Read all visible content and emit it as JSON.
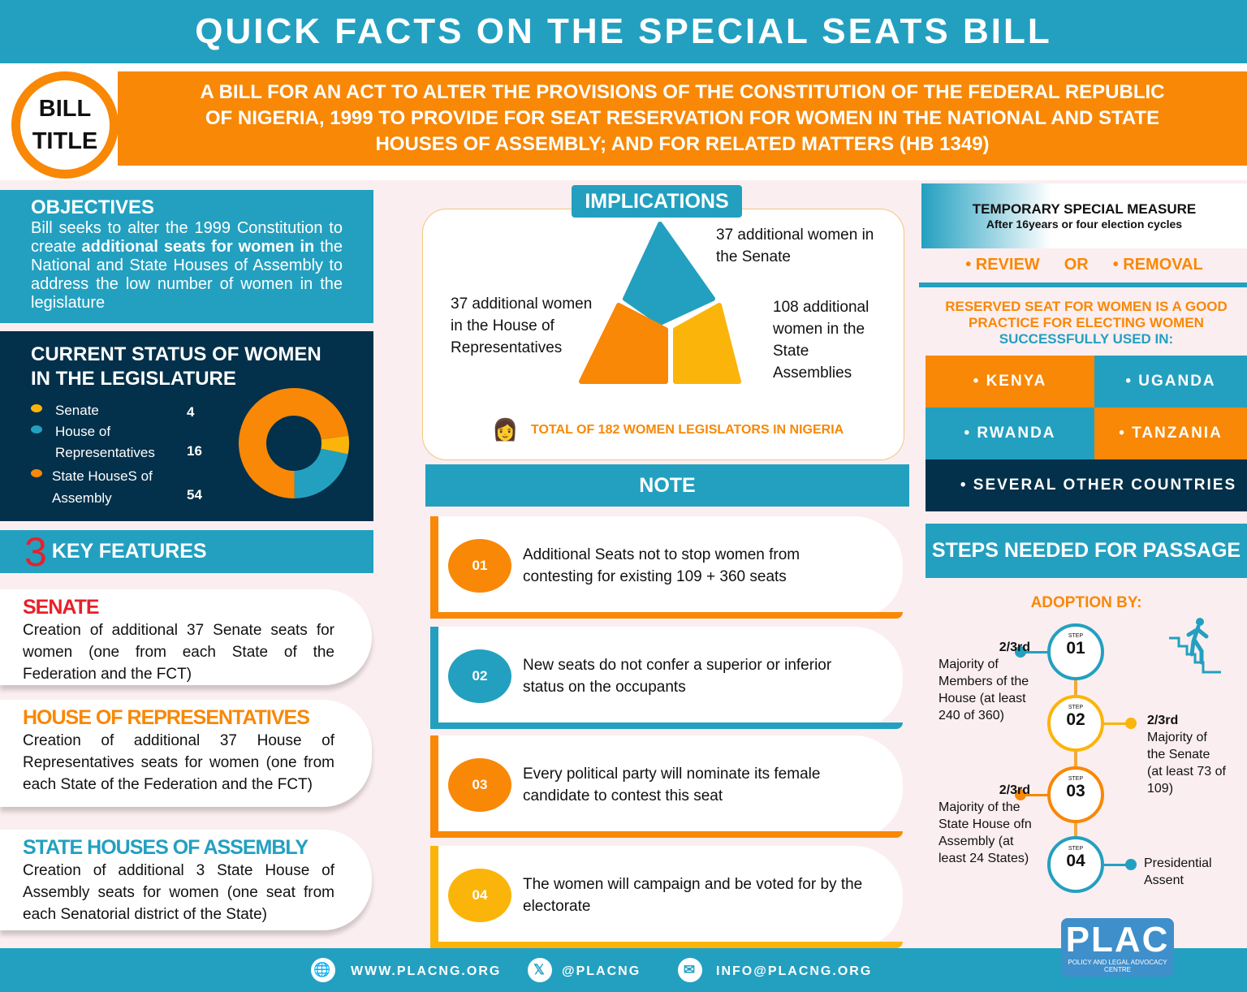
{
  "header": {
    "title": "QUICK FACTS ON THE SPECIAL SEATS BILL"
  },
  "bill": {
    "label_line1": "BILL",
    "label_line2": "TITLE",
    "text": "A BILL FOR AN ACT TO ALTER THE PROVISIONS OF THE CONSTITUTION OF THE FEDERAL REPUBLIC OF NIGERIA, 1999 TO PROVIDE FOR SEAT RESERVATION FOR WOMEN IN THE NATIONAL AND STATE HOUSES OF ASSEMBLY; AND FOR RELATED MATTERS (HB 1349)"
  },
  "objectives": {
    "title": "OBJECTIVES",
    "text_pre": "Bill seeks to alter the 1999 Constitution to create ",
    "text_bold": "additional seats for women in",
    "text_post": " the National and State Houses of Assembly to address the low number of women in the legislature"
  },
  "status": {
    "title": "CURRENT STATUS OF WOMEN IN THE LEGISLATURE",
    "items": [
      {
        "label1": "Senate",
        "label2": "",
        "value": 4,
        "color": "#fbb40a"
      },
      {
        "label1": "House of",
        "label2": "Representatives",
        "value": 16,
        "color": "#23a0c0"
      },
      {
        "label1": "State HouseS of",
        "label2": "Assembly",
        "value": 54,
        "color": "#f88806"
      }
    ]
  },
  "key_features": {
    "count": "3",
    "title": "KEY FEATURES",
    "items": [
      {
        "title": "SENATE",
        "color": "#e8202a",
        "text": "Creation of additional 37 Senate seats for women (one from each State of the Federation and the FCT)"
      },
      {
        "title": "HOUSE OF REPRESENTATIVES",
        "color": "#f88806",
        "text": "Creation of additional 37 House of Representatives seats for women (one from each State of the Federation and the FCT)"
      },
      {
        "title": "STATE HOUSES OF ASSEMBLY",
        "color": "#23a0c0",
        "text": "Creation of additional 3 State House of Assembly seats for women (one seat from each Senatorial district of the State)"
      }
    ]
  },
  "implications": {
    "title": "IMPLICATIONS",
    "senate": "37 additional women in the Senate",
    "house": "37 additional women in the House of Representatives",
    "state": "108 additional women in the State Assemblies",
    "total": "TOTAL OF 182 WOMEN LEGISLATORS IN NIGERIA"
  },
  "note": {
    "title": "NOTE",
    "items": [
      {
        "num": "01",
        "text": "Additional Seats not to stop women from contesting for existing 109 + 360 seats",
        "color": "#f88806"
      },
      {
        "num": "02",
        "text": "New seats do not confer a superior or inferior status on the occupants",
        "color": "#23a0c0"
      },
      {
        "num": "03",
        "text": "Every political party will nominate its female candidate to contest this seat",
        "color": "#f88806"
      },
      {
        "num": "04",
        "text": "The women will campaign and be voted for by the electorate",
        "color": "#fbb40a"
      }
    ]
  },
  "tsm": {
    "title": "TEMPORARY SPECIAL MEASURE",
    "subtitle": "After 16years or four election cycles",
    "review": "• REVIEW",
    "or": "OR",
    "removal": "• REMOVAL"
  },
  "reserved": {
    "line1": "RESERVED SEAT FOR WOMEN IS A GOOD PRACTICE FOR ELECTING WOMEN",
    "line2": "SUCCESSFULLY USED IN:",
    "countries": [
      "• KENYA",
      "• UGANDA",
      "• RWANDA",
      "• TANZANIA",
      "• SEVERAL OTHER COUNTRIES"
    ]
  },
  "steps": {
    "title": "STEPS NEEDED FOR PASSAGE",
    "adoption": "ADOPTION BY:",
    "step_label": "STEP",
    "items": [
      {
        "num": "01",
        "bold": "2/3rd",
        "text": "Majority of Members of the House (at least 240 of 360)",
        "color": "#23a0c0"
      },
      {
        "num": "02",
        "bold": "2/3rd",
        "text": "Majority of the Senate (at least 73 of 109)",
        "color": "#fbb40a"
      },
      {
        "num": "03",
        "bold": "2/3rd",
        "text": "Majority of the State House ofn Assembly (at least 24 States)",
        "color": "#f88806"
      },
      {
        "num": "04",
        "bold": "",
        "text": "Presidential Assent",
        "color": "#23a0c0"
      }
    ]
  },
  "footer": {
    "website": "WWW.PLACNG.ORG",
    "twitter": "@PLACNG",
    "email": "INFO@PLACNG.ORG"
  },
  "logo": {
    "name": "PLAC",
    "tagline": "POLICY AND LEGAL ADVOCACY CENTRE"
  }
}
